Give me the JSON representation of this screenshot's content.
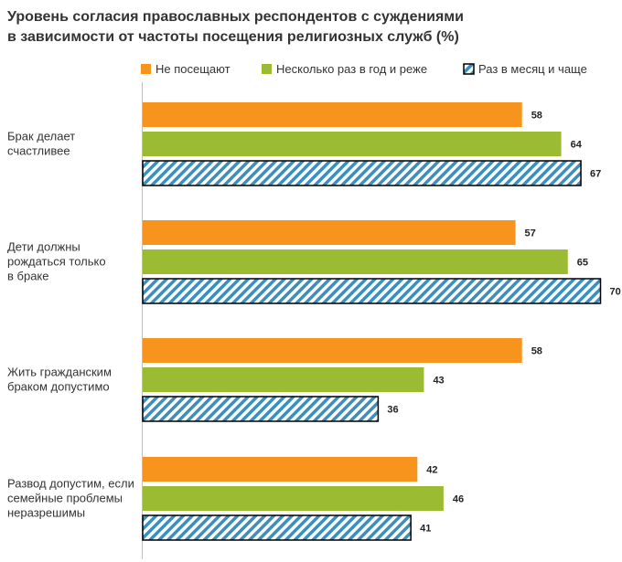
{
  "chart_data": {
    "type": "bar",
    "orientation": "horizontal",
    "title_lines": [
      "Уровень согласия православных респондентов с суждениями",
      "в зависимости от частоты посещения религиозных служб (%)"
    ],
    "legend_position": "top",
    "series": [
      {
        "name": "Не посещают",
        "color": "#f7941d",
        "pattern": "solid",
        "values": [
          58,
          57,
          58,
          42
        ]
      },
      {
        "name": "Несколько раз в год и реже",
        "color": "#9bbb33",
        "pattern": "solid",
        "values": [
          64,
          65,
          43,
          46
        ]
      },
      {
        "name": "Раз в месяц и чаще",
        "color": "#3a8fbf",
        "pattern": "hatched",
        "values": [
          67,
          70,
          36,
          41
        ]
      }
    ],
    "categories": [
      [
        "Брак делает",
        "счастливее"
      ],
      [
        "Дети должны",
        "рождаться только",
        "в браке"
      ],
      [
        "Жить гражданским",
        "браком допустимо"
      ],
      [
        "Развод допустим, если",
        "семейные проблемы",
        "неразрешимы"
      ]
    ],
    "xlim": [
      0,
      70
    ],
    "grid": false
  }
}
